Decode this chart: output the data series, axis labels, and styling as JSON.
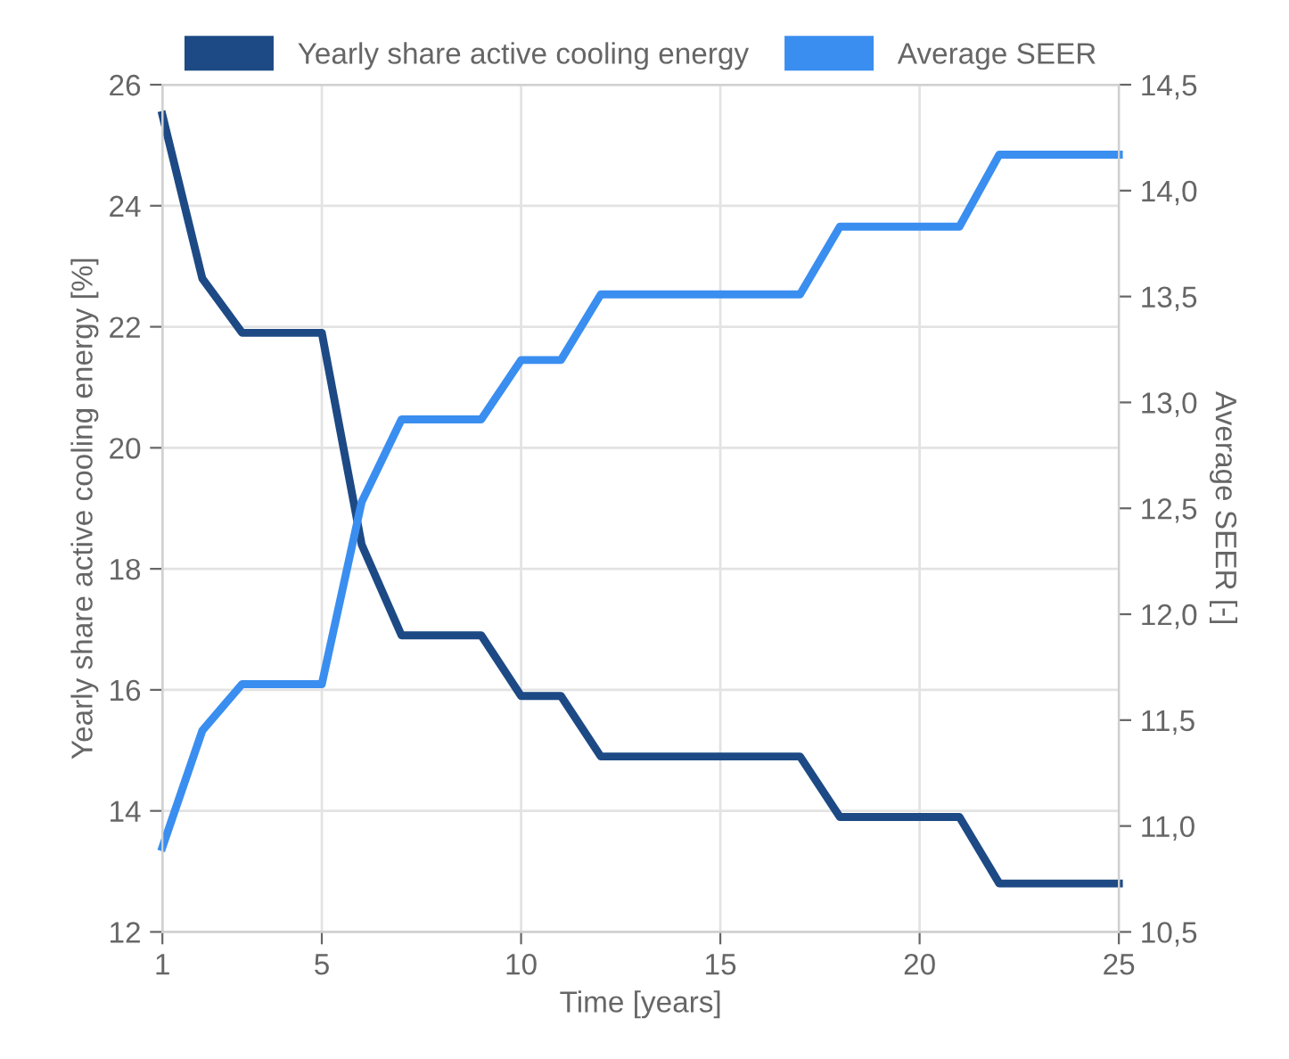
{
  "chart_data": {
    "type": "line",
    "xlabel": "Time [years]",
    "ylabel": "Yearly share active cooling energy [%]",
    "y2label": "Average SEER [-]",
    "x": [
      1,
      2,
      3,
      4,
      5,
      6,
      7,
      8,
      9,
      10,
      11,
      12,
      13,
      14,
      15,
      16,
      17,
      18,
      19,
      20,
      21,
      22,
      23,
      24,
      25
    ],
    "series": [
      {
        "name": "Yearly share active cooling energy",
        "color": "#1d4a85",
        "values": [
          25.5,
          22.8,
          21.9,
          21.9,
          21.9,
          18.4,
          16.9,
          16.9,
          16.9,
          15.9,
          15.9,
          14.9,
          14.9,
          14.9,
          14.9,
          14.9,
          14.9,
          13.9,
          13.9,
          13.9,
          13.9,
          12.8,
          12.8,
          12.8,
          12.8
        ]
      },
      {
        "name": "Average SEER",
        "color": "#3a8ef0",
        "axis": "y2",
        "values": [
          10.9,
          11.45,
          11.67,
          11.67,
          11.67,
          12.53,
          12.92,
          12.92,
          12.92,
          13.2,
          13.2,
          13.51,
          13.51,
          13.51,
          13.51,
          13.51,
          13.51,
          13.83,
          13.83,
          13.83,
          13.83,
          14.17,
          14.17,
          14.17,
          14.17
        ]
      }
    ],
    "xlim": [
      1,
      25
    ],
    "xticks": [
      1,
      5,
      10,
      15,
      20,
      25
    ],
    "ylim": [
      12,
      26
    ],
    "yticks": [
      12,
      14,
      16,
      18,
      20,
      22,
      24,
      26
    ],
    "y2lim": [
      10.5,
      14.5
    ],
    "y2ticks": [
      {
        "value": 10.5,
        "label": "10,5"
      },
      {
        "value": 11.0,
        "label": "11,0"
      },
      {
        "value": 11.5,
        "label": "11,5"
      },
      {
        "value": 12.0,
        "label": "12,0"
      },
      {
        "value": 12.5,
        "label": "12,5"
      },
      {
        "value": 13.0,
        "label": "13,0"
      },
      {
        "value": 13.5,
        "label": "13,5"
      },
      {
        "value": 14.0,
        "label": "14,0"
      },
      {
        "value": 14.5,
        "label": "14,5"
      }
    ],
    "grid": true,
    "legend": "top",
    "marker": "none",
    "line_style": "solid"
  }
}
